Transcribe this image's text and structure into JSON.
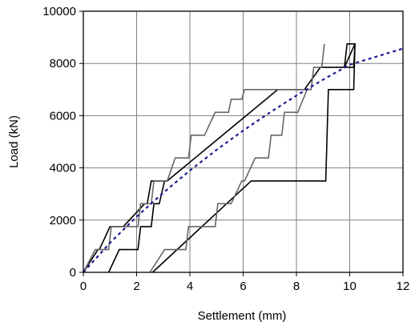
{
  "chart_data": {
    "type": "line",
    "title": "",
    "xlabel": "Settlement (mm)",
    "ylabel": "Load (kN)",
    "xlim": [
      0,
      12
    ],
    "ylim": [
      0,
      10000
    ],
    "xticks": [
      0,
      2,
      4,
      6,
      8,
      10,
      12
    ],
    "yticks": [
      0,
      2000,
      4000,
      6000,
      8000,
      10000
    ],
    "grid": true,
    "legend": "none",
    "colors": {
      "gridline": "#808080",
      "axis": "#000000",
      "measured": "#000000",
      "measured_alt": "#666666",
      "predicted": "#1f1f8f"
    },
    "series": [
      {
        "style": "solid",
        "color": "#000000",
        "x": [
          0,
          0.55,
          0.6,
          1.0,
          1.1,
          1.4,
          1.5,
          2.3,
          2.4,
          2.55,
          2.65,
          2.95,
          3.15,
          7.3,
          8.3,
          8.9,
          9.0,
          9.8,
          9.9,
          10.2,
          10.15,
          9.8,
          10.2,
          10.15,
          9.2,
          9.1,
          6.3,
          2.6
        ],
        "y": [
          0,
          870,
          870,
          1750,
          1750,
          1750,
          1750,
          2630,
          2630,
          3500,
          3500,
          3500,
          3500,
          7000,
          7000,
          7850,
          7850,
          7850,
          8750,
          8750,
          7850,
          7850,
          8750,
          7000,
          7000,
          3500,
          3500,
          0
        ]
      },
      {
        "style": "solid",
        "color": "#000000",
        "x": [
          0.95,
          1.35,
          1.45,
          2.05,
          2.15,
          2.55,
          2.65,
          2.85,
          3.05
        ],
        "y": [
          0,
          870,
          870,
          870,
          1750,
          1750,
          2630,
          2630,
          3500
        ]
      },
      {
        "style": "solid",
        "color": "#666666",
        "x": [
          0,
          0.45,
          0.55,
          0.95,
          1.05,
          1.45,
          1.55,
          2.05,
          2.15,
          2.55,
          2.65,
          3.05,
          3.15,
          3.45,
          3.55,
          3.95,
          4.05,
          4.45,
          4.55,
          4.95,
          5.05,
          5.45,
          5.55,
          5.95,
          6.05,
          6.55,
          8.35,
          8.55,
          8.65,
          8.95,
          9.05
        ],
        "y": [
          0,
          870,
          870,
          870,
          1750,
          1750,
          1750,
          1750,
          2630,
          2630,
          3500,
          3500,
          3500,
          4380,
          4380,
          4380,
          5250,
          5250,
          5250,
          6130,
          6130,
          6130,
          6630,
          6630,
          7000,
          7000,
          7000,
          7000,
          7850,
          7850,
          8750
        ]
      },
      {
        "style": "solid",
        "color": "#666666",
        "x": [
          2.5,
          3.05,
          3.15,
          3.85,
          3.95,
          4.45,
          4.55,
          4.95,
          5.05,
          5.45,
          5.55,
          5.95,
          6.05,
          6.45,
          6.55,
          6.95,
          7.05,
          7.45,
          7.55,
          7.95,
          8.05,
          8.4
        ],
        "y": [
          0,
          870,
          870,
          870,
          1750,
          1750,
          1750,
          1750,
          2630,
          2630,
          2630,
          3500,
          3500,
          4380,
          4380,
          4380,
          5250,
          5250,
          6130,
          6130,
          6130,
          7000
        ]
      },
      {
        "style": "dashed",
        "color": "#1f1f8f",
        "x": [
          0,
          1,
          2,
          3,
          4,
          5,
          6,
          7,
          8,
          9,
          10,
          11,
          12
        ],
        "y": [
          0,
          1130,
          2130,
          3050,
          3900,
          4690,
          5430,
          6120,
          6770,
          7380,
          7950,
          8260,
          8570
        ]
      }
    ]
  }
}
